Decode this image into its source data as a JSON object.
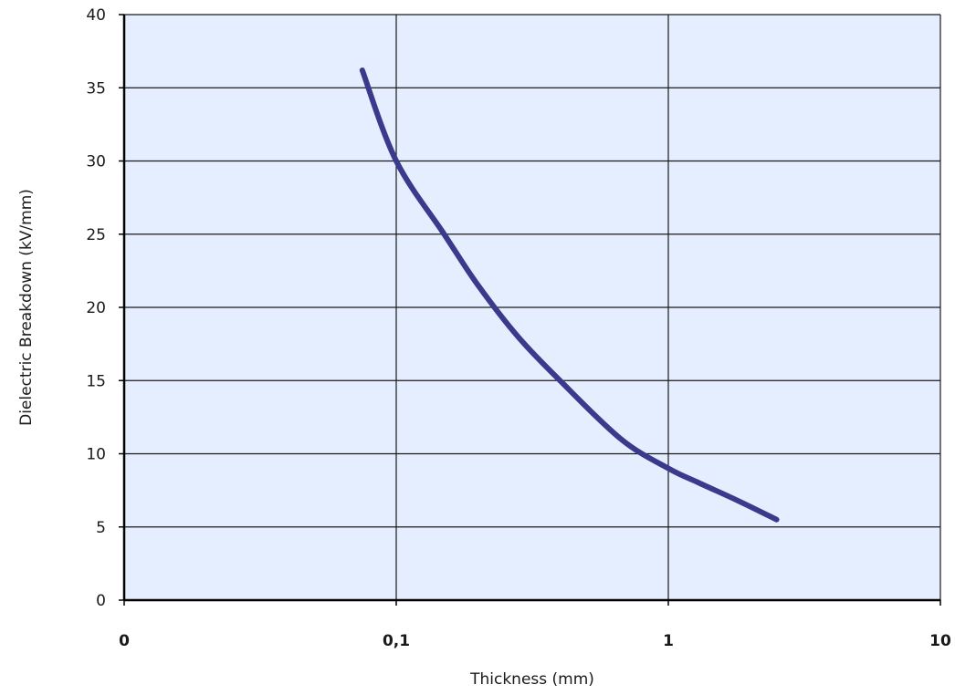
{
  "chart_data": {
    "type": "line",
    "xlabel": "Thickness (mm)",
    "ylabel": "Dielectric Breakdown (kV/mm)",
    "x_scale": "log",
    "x_tick_labels": [
      "0",
      "0,1",
      "1",
      "10"
    ],
    "x_tick_values": [
      0.01,
      0.1,
      1,
      10
    ],
    "xlim": [
      0.01,
      10
    ],
    "ylim": [
      0,
      40
    ],
    "y_ticks": [
      0,
      5,
      10,
      15,
      20,
      25,
      30,
      35,
      40
    ],
    "grid": true,
    "plot_background": "#e5eeff",
    "series": [
      {
        "color": "#3a3a8c",
        "x": [
          0.075,
          0.1,
          0.15,
          0.2,
          0.28,
          0.4,
          0.67,
          1.0,
          1.3,
          1.8,
          2.5
        ],
        "y": [
          36.2,
          30,
          25,
          21.5,
          18,
          15,
          11,
          9,
          8,
          6.8,
          5.5
        ]
      }
    ]
  }
}
